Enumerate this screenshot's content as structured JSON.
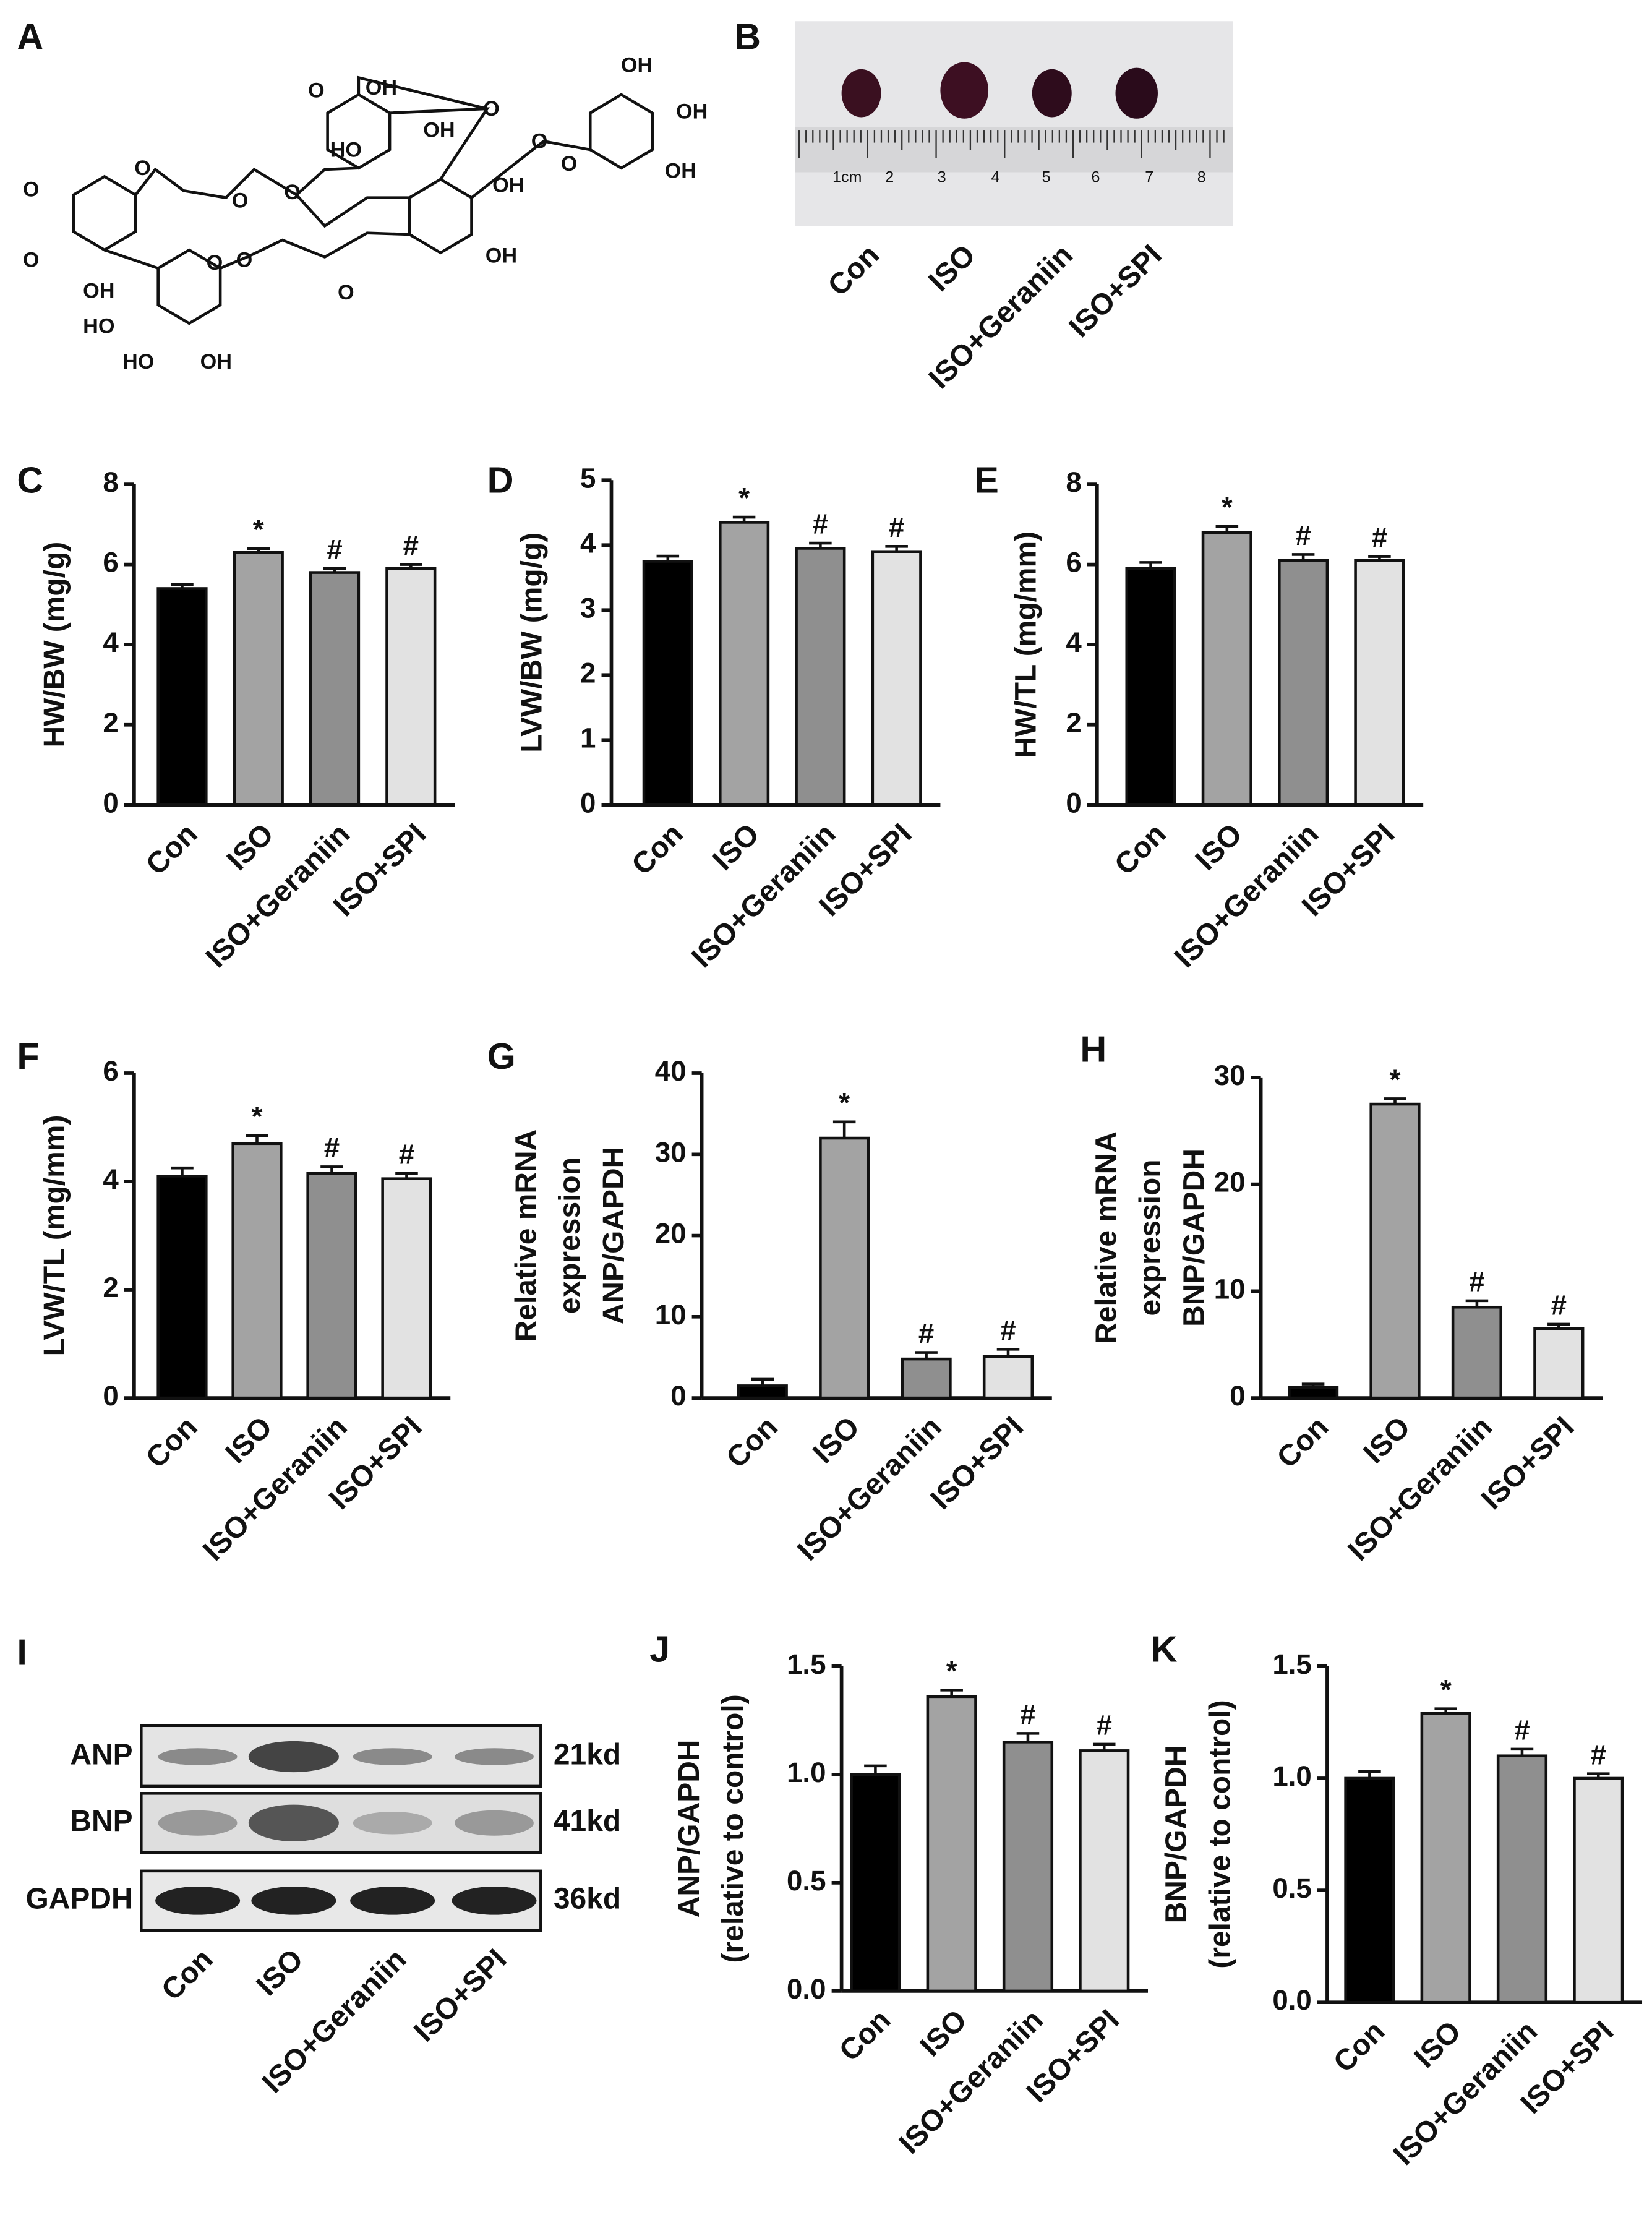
{
  "panel_a": {
    "panel": "A",
    "atom_labels": [
      "OH",
      "O",
      "OH",
      "O",
      "OH",
      "OH",
      "HO",
      "O",
      "O",
      "OH",
      "OH",
      "O",
      "O",
      "O",
      "O",
      "OH",
      "O",
      "O",
      "OH",
      "O",
      "O",
      "HO",
      "HO",
      "OH"
    ]
  },
  "panel_b": {
    "panel": "B",
    "ruler_labels": [
      "1cm",
      "2",
      "3",
      "4",
      "5",
      "6",
      "7",
      "8"
    ],
    "groups": [
      "Con",
      "ISO",
      "ISO+Geraniin",
      "ISO+SPI"
    ]
  },
  "panel_i": {
    "panel": "I",
    "bands": [
      "ANP",
      "BNP",
      "GAPDH"
    ],
    "sizes": [
      "21kd",
      "41kd",
      "36kd"
    ],
    "groups": [
      "Con",
      "ISO",
      "ISO+Geraniin",
      "ISO+SPI"
    ]
  },
  "chart_data": [
    {
      "type": "bar",
      "panel": "C",
      "ylabel": [
        "HW/BW (mg/g)"
      ],
      "categories": [
        "Con",
        "ISO",
        "ISO+Geraniin",
        "ISO+SPI"
      ],
      "values": [
        5.4,
        6.3,
        5.8,
        5.9
      ],
      "errors": [
        0.1,
        0.1,
        0.1,
        0.1
      ],
      "annotations": [
        null,
        "*",
        "#",
        "#"
      ],
      "colors": [
        "#000000",
        "#a3a3a3",
        "#8f8f8f",
        "#e2e2e2"
      ],
      "ylim": [
        0,
        8
      ],
      "yticks": [
        0,
        2,
        4,
        6,
        8
      ]
    },
    {
      "type": "bar",
      "panel": "D",
      "ylabel": [
        "LVW/BW (mg/g)"
      ],
      "categories": [
        "Con",
        "ISO",
        "ISO+Geraniin",
        "ISO+SPI"
      ],
      "values": [
        3.75,
        4.35,
        3.95,
        3.9
      ],
      "errors": [
        0.08,
        0.08,
        0.08,
        0.08
      ],
      "annotations": [
        null,
        "*",
        "#",
        "#"
      ],
      "colors": [
        "#000000",
        "#a3a3a3",
        "#8f8f8f",
        "#e2e2e2"
      ],
      "ylim": [
        0,
        5
      ],
      "yticks": [
        0,
        1,
        2,
        3,
        4,
        5
      ]
    },
    {
      "type": "bar",
      "panel": "E",
      "ylabel": [
        "HW/TL (mg/mm)"
      ],
      "categories": [
        "Con",
        "ISO",
        "ISO+Geraniin",
        "ISO+SPI"
      ],
      "values": [
        5.9,
        6.8,
        6.1,
        6.1
      ],
      "errors": [
        0.15,
        0.15,
        0.15,
        0.1
      ],
      "annotations": [
        null,
        "*",
        "#",
        "#"
      ],
      "colors": [
        "#000000",
        "#a3a3a3",
        "#8f8f8f",
        "#e2e2e2"
      ],
      "ylim": [
        0,
        8
      ],
      "yticks": [
        0,
        2,
        4,
        6,
        8
      ]
    },
    {
      "type": "bar",
      "panel": "F",
      "ylabel": [
        "LVW/TL (mg/mm)"
      ],
      "categories": [
        "Con",
        "ISO",
        "ISO+Geraniin",
        "ISO+SPI"
      ],
      "values": [
        4.1,
        4.7,
        4.15,
        4.05
      ],
      "errors": [
        0.15,
        0.15,
        0.12,
        0.1
      ],
      "annotations": [
        null,
        "*",
        "#",
        "#"
      ],
      "colors": [
        "#000000",
        "#a3a3a3",
        "#8f8f8f",
        "#e2e2e2"
      ],
      "ylim": [
        0,
        6
      ],
      "yticks": [
        0,
        2,
        4,
        6
      ]
    },
    {
      "type": "bar",
      "panel": "G",
      "ylabel": [
        "Relative mRNA",
        "expression",
        "ANP/GAPDH"
      ],
      "categories": [
        "Con",
        "ISO",
        "ISO+Geraniin",
        "ISO+SPI"
      ],
      "values": [
        1.5,
        32,
        4.8,
        5.1
      ],
      "errors": [
        0.8,
        2,
        0.8,
        0.9
      ],
      "annotations": [
        null,
        "*",
        "#",
        "#"
      ],
      "colors": [
        "#000000",
        "#a3a3a3",
        "#8f8f8f",
        "#e2e2e2"
      ],
      "ylim": [
        0,
        40
      ],
      "yticks": [
        0,
        10,
        20,
        30,
        40
      ]
    },
    {
      "type": "bar",
      "panel": "H",
      "ylabel": [
        "Relative mRNA",
        "expression",
        "BNP/GAPDH"
      ],
      "categories": [
        "Con",
        "ISO",
        "ISO+Geraniin",
        "ISO+SPI"
      ],
      "values": [
        1,
        27.5,
        8.5,
        6.5
      ],
      "errors": [
        0.3,
        0.5,
        0.6,
        0.4
      ],
      "annotations": [
        null,
        "*",
        "#",
        "#"
      ],
      "colors": [
        "#000000",
        "#a3a3a3",
        "#8f8f8f",
        "#e2e2e2"
      ],
      "ylim": [
        0,
        30
      ],
      "yticks": [
        0,
        10,
        20,
        30
      ]
    },
    {
      "type": "bar",
      "panel": "J",
      "ylabel": [
        "ANP/GAPDH",
        "(relative to control)"
      ],
      "categories": [
        "Con",
        "ISO",
        "ISO+Geraniin",
        "ISO+SPI"
      ],
      "values": [
        1.0,
        1.36,
        1.15,
        1.11
      ],
      "errors": [
        0.04,
        0.03,
        0.04,
        0.03
      ],
      "annotations": [
        null,
        "*",
        "#",
        "#"
      ],
      "colors": [
        "#000000",
        "#a3a3a3",
        "#8f8f8f",
        "#e2e2e2"
      ],
      "ylim": [
        0,
        1.5
      ],
      "yticks": [
        {
          "value": 0,
          "label": "0.0"
        },
        0.5,
        {
          "value": 1,
          "label": "1.0"
        },
        1.5
      ]
    },
    {
      "type": "bar",
      "panel": "K",
      "ylabel": [
        "BNP/GAPDH",
        "(relative to control)"
      ],
      "categories": [
        "Con",
        "ISO",
        "ISO+Geraniin",
        "ISO+SPI"
      ],
      "values": [
        1.0,
        1.29,
        1.1,
        1.0
      ],
      "errors": [
        0.03,
        0.02,
        0.03,
        0.02
      ],
      "annotations": [
        null,
        "*",
        "#",
        "#"
      ],
      "colors": [
        "#000000",
        "#a3a3a3",
        "#8f8f8f",
        "#e2e2e2"
      ],
      "ylim": [
        0,
        1.5
      ],
      "yticks": [
        {
          "value": 0,
          "label": "0.0"
        },
        0.5,
        {
          "value": 1,
          "label": "1.0"
        },
        1.5
      ]
    }
  ]
}
